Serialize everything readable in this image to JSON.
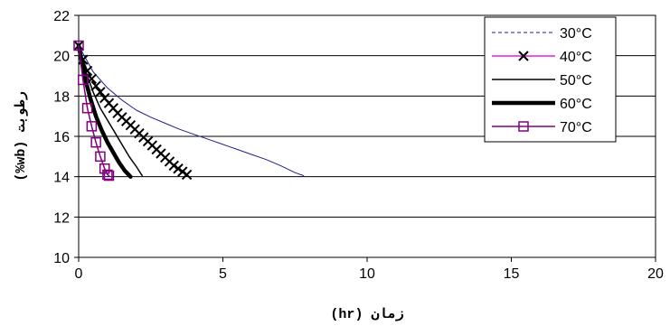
{
  "chart_data": {
    "type": "line",
    "xlabel": "زمان (hr)",
    "ylabel": "رطوبت (wb%)",
    "xlim": [
      0,
      20
    ],
    "ylim": [
      10,
      22
    ],
    "x_ticks": [
      0,
      5,
      10,
      15,
      20
    ],
    "y_ticks": [
      10,
      12,
      14,
      16,
      18,
      20,
      22
    ],
    "grid": "horizontal",
    "legend_position": "top-right",
    "series": [
      {
        "name": "30°C",
        "color": "#1f1f8f",
        "style": "thin-line",
        "x": [
          0,
          0.5,
          1,
          1.5,
          2,
          2.5,
          3,
          3.5,
          4,
          4.5,
          5,
          5.5,
          6,
          6.5,
          7,
          7.5,
          7.8
        ],
        "y": [
          20.5,
          19.2,
          18.4,
          17.8,
          17.3,
          16.95,
          16.65,
          16.35,
          16.1,
          15.85,
          15.6,
          15.35,
          15.1,
          14.85,
          14.55,
          14.2,
          14.05
        ]
      },
      {
        "name": "40°C",
        "color": "#000000",
        "style": "x-markers",
        "x": [
          0,
          0.15,
          0.3,
          0.45,
          0.6,
          0.75,
          0.9,
          1.05,
          1.2,
          1.35,
          1.5,
          1.65,
          1.8,
          1.95,
          2.1,
          2.25,
          2.4,
          2.55,
          2.7,
          2.85,
          3.0,
          3.15,
          3.3,
          3.45,
          3.6,
          3.75
        ],
        "y": [
          20.5,
          19.8,
          19.25,
          18.85,
          18.5,
          18.2,
          17.9,
          17.65,
          17.4,
          17.15,
          16.95,
          16.75,
          16.55,
          16.35,
          16.15,
          15.95,
          15.75,
          15.55,
          15.35,
          15.15,
          14.95,
          14.75,
          14.55,
          14.4,
          14.25,
          14.1
        ]
      },
      {
        "name": "50°C",
        "color": "#000000",
        "style": "line",
        "x": [
          0,
          0.25,
          0.5,
          0.75,
          1,
          1.25,
          1.5,
          1.75,
          2,
          2.2
        ],
        "y": [
          20.5,
          19.2,
          18.2,
          17.4,
          16.8,
          16.2,
          15.6,
          15.0,
          14.5,
          14.05
        ]
      },
      {
        "name": "60°C",
        "color": "#000000",
        "style": "thick-line",
        "x": [
          0,
          0.2,
          0.4,
          0.6,
          0.8,
          1.0,
          1.2,
          1.4,
          1.6,
          1.8
        ],
        "y": [
          20.5,
          19.0,
          17.9,
          17.0,
          16.3,
          15.7,
          15.2,
          14.7,
          14.3,
          14.0
        ]
      },
      {
        "name": "70°C",
        "color": "#800080",
        "style": "square-markers",
        "x": [
          0,
          0.15,
          0.3,
          0.45,
          0.6,
          0.75,
          0.9,
          1.0,
          1.05
        ],
        "y": [
          20.5,
          18.8,
          17.4,
          16.5,
          15.7,
          15.0,
          14.4,
          14.1,
          14.05
        ]
      }
    ]
  }
}
